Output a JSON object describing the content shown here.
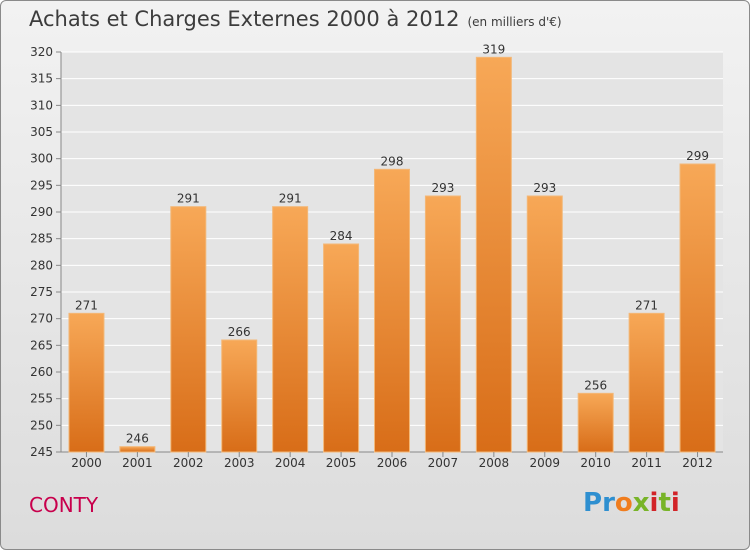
{
  "title": "Achats et Charges Externes 2000 à 2012",
  "unit_note": "(en milliers d'€)",
  "commune": "CONTY",
  "logo": {
    "letters": [
      "P",
      "r",
      "o",
      "x",
      "i",
      "t",
      "i"
    ],
    "colors": [
      "#2e8fd0",
      "#2e8fd0",
      "#f07d1e",
      "#78b428",
      "#d22328",
      "#78b428",
      "#d22328"
    ]
  },
  "colors": {
    "bar_top": "#f7a857",
    "bar_bottom": "#d86d18",
    "title": "#3c3c3c",
    "commune": "#c8004c"
  },
  "chart_data": {
    "type": "bar",
    "categories": [
      "2000",
      "2001",
      "2002",
      "2003",
      "2004",
      "2005",
      "2006",
      "2007",
      "2008",
      "2009",
      "2010",
      "2011",
      "2012"
    ],
    "values": [
      271,
      246,
      291,
      266,
      291,
      284,
      298,
      293,
      319,
      293,
      256,
      271,
      299
    ],
    "ylim": [
      245,
      320
    ],
    "yticks": [
      245,
      250,
      255,
      260,
      265,
      270,
      275,
      280,
      285,
      290,
      295,
      300,
      305,
      310,
      315,
      320
    ],
    "grid": true
  }
}
